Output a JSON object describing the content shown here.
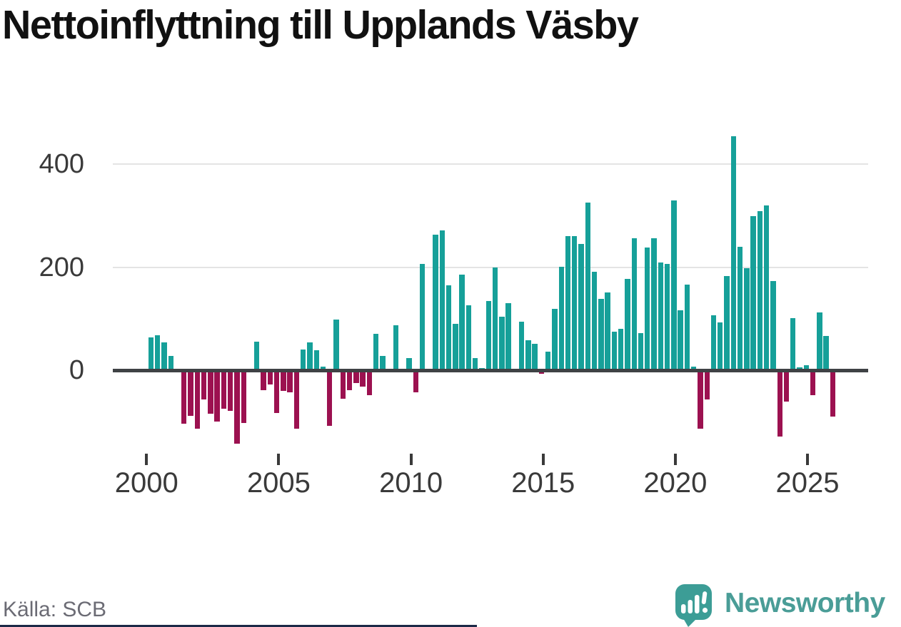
{
  "chart_data": {
    "type": "bar",
    "title": "Nettoinflyttning till Upplands Väsby",
    "frequency": "quarterly",
    "start_quarter": "2000 Q1",
    "values": [
      64,
      68,
      54,
      28,
      0,
      -103,
      -88,
      -113,
      -56,
      -84,
      -99,
      -74,
      -79,
      -142,
      -102,
      0,
      56,
      -39,
      -27,
      -82,
      -40,
      -42,
      -113,
      41,
      55,
      39,
      8,
      -108,
      99,
      -55,
      -38,
      -25,
      -31,
      -48,
      71,
      28,
      0,
      88,
      0,
      24,
      -42,
      207,
      0,
      263,
      272,
      165,
      91,
      186,
      127,
      24,
      4,
      134,
      200,
      104,
      130,
      0,
      94,
      59,
      52,
      -6,
      37,
      120,
      201,
      261,
      260,
      245,
      326,
      192,
      139,
      151,
      75,
      81,
      178,
      257,
      72,
      238,
      257,
      209,
      207,
      330,
      116,
      166,
      7,
      -113,
      -57,
      107,
      93,
      183,
      455,
      240,
      198,
      300,
      309,
      320,
      174,
      -129,
      -60,
      102,
      6,
      10,
      -48,
      112,
      67,
      -90
    ],
    "x_axis": {
      "tick_years": [
        2000,
        2005,
        2010,
        2015,
        2020,
        2025
      ],
      "tick_labels": [
        "2000",
        "2005",
        "2010",
        "2015",
        "2020",
        "2025"
      ]
    },
    "y_axis": {
      "tick_values": [
        0,
        200,
        400
      ],
      "tick_labels": [
        "0",
        "200",
        "400"
      ]
    },
    "ylim": [
      -160,
      470
    ],
    "grid": "horizontal",
    "legend": "none",
    "colors": {
      "positive": "#16a099",
      "negative": "#9c1150",
      "axis": "#3f4245",
      "gridline": "#e4e4e4",
      "brand_teal": "#4a9d97",
      "footer_navy": "#1c2947"
    }
  },
  "footer": {
    "source": "Källa: SCB",
    "brand": "Newsworthy"
  }
}
